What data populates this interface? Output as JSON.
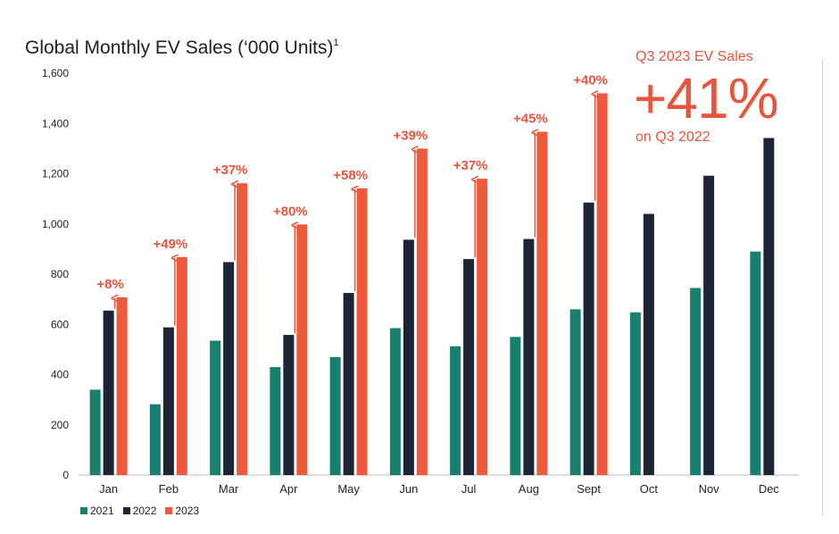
{
  "title": "Global Monthly EV Sales (‘000 Units)",
  "title_footnote": "1",
  "callout": {
    "title": "Q3 2023 EV Sales",
    "value": "+41%",
    "subtitle": "on Q3 2022"
  },
  "colors": {
    "2021": "#17806f",
    "2022": "#1c2436",
    "2023": "#ef5a3d",
    "annotation": "#e8553d"
  },
  "chart_data": {
    "type": "bar",
    "title": "Global Monthly EV Sales (‘000 Units)",
    "xlabel": "",
    "ylabel": "",
    "ylim": [
      0,
      1600
    ],
    "yticks": [
      0,
      200,
      400,
      600,
      800,
      1000,
      1200,
      1400,
      1600
    ],
    "ytick_labels": [
      "0",
      "200",
      "400",
      "600",
      "800",
      "1,000",
      "1,200",
      "1,400",
      "1,600"
    ],
    "categories": [
      "Jan",
      "Feb",
      "Mar",
      "Apr",
      "May",
      "Jun",
      "Jul",
      "Aug",
      "Sept",
      "Oct",
      "Nov",
      "Dec"
    ],
    "series": [
      {
        "name": "2021",
        "values": [
          340,
          282,
          535,
          430,
          470,
          585,
          513,
          550,
          660,
          648,
          745,
          890
        ]
      },
      {
        "name": "2022",
        "values": [
          655,
          588,
          848,
          558,
          725,
          937,
          860,
          940,
          1085,
          1040,
          1192,
          1342
        ]
      },
      {
        "name": "2023",
        "values": [
          708,
          868,
          1162,
          998,
          1142,
          1300,
          1180,
          1367,
          1520,
          null,
          null,
          null
        ]
      }
    ],
    "annotations": [
      "+8%",
      "+49%",
      "+37%",
      "+80%",
      "+58%",
      "+39%",
      "+37%",
      "+45%",
      "+40%"
    ],
    "legend_position": "bottom-left"
  }
}
